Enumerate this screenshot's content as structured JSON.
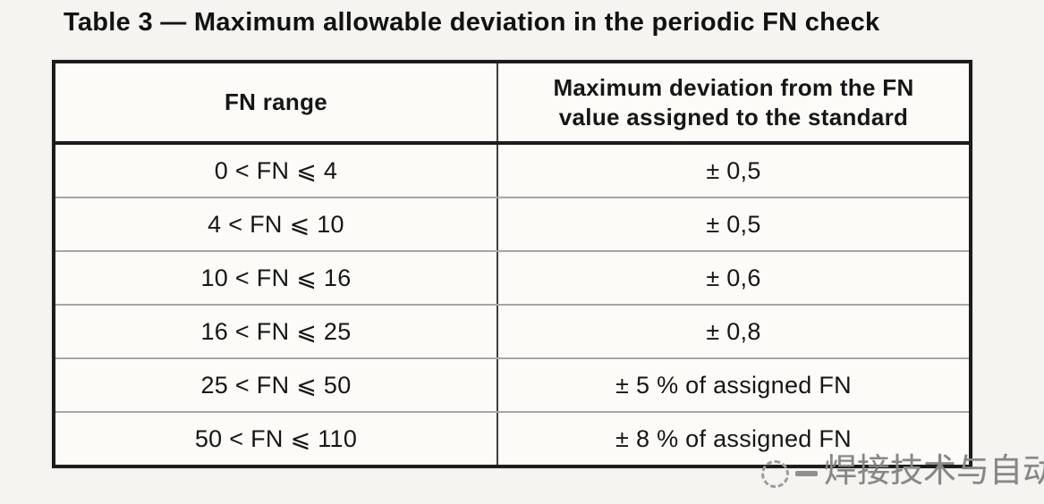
{
  "title": "Table 3 — Maximum allowable deviation in the periodic FN check",
  "table": {
    "header": {
      "fn_range": "FN range",
      "max_deviation_line1": "Maximum deviation from the FN",
      "max_deviation_line2": "value assigned to the standard"
    },
    "rows": [
      {
        "range": "0 < FN ⩽ 4",
        "deviation": "± 0,5"
      },
      {
        "range": "4 < FN ⩽ 10",
        "deviation": "± 0,5"
      },
      {
        "range": "10 < FN ⩽ 16",
        "deviation": "± 0,6"
      },
      {
        "range": "16 < FN ⩽ 25",
        "deviation": "± 0,8"
      },
      {
        "range": "25 < FN ⩽ 50",
        "deviation": "± 5 % of assigned FN"
      },
      {
        "range": "50 < FN ⩽ 110",
        "deviation": "± 8 % of assigned FN"
      }
    ]
  },
  "watermark": {
    "logo": "dashed-circle-logo",
    "text": "焊接技术与自动化"
  },
  "colors": {
    "page_background": "#f5f4f1",
    "cell_background": "#fcfbf8",
    "table_border": "#1c1c1c",
    "row_separator": "#a6a6a6",
    "column_divider": "#3d3d3d",
    "text": "#161616",
    "watermark_gray": "#878787"
  }
}
